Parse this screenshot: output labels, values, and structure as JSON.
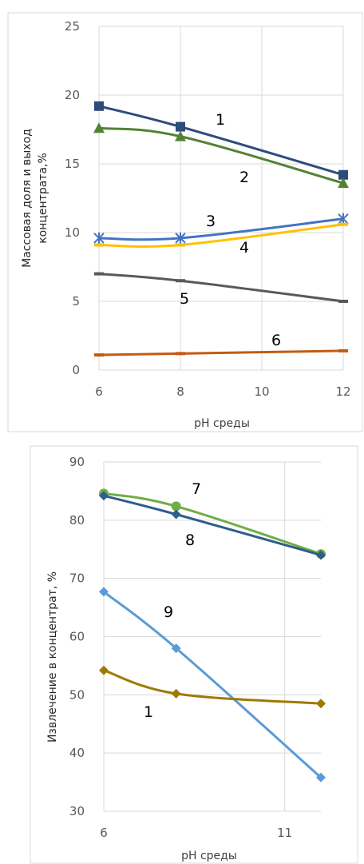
{
  "chart_data": [
    {
      "type": "line",
      "title": "",
      "xlabel": "pH среды",
      "ylabel_lines": [
        "Массовая доля  и выход",
        "концентрата,%"
      ],
      "x_ticks": [
        6,
        8,
        10,
        12
      ],
      "y_ticks": [
        0,
        5,
        10,
        15,
        20,
        25
      ],
      "xlim": [
        6,
        12
      ],
      "ylim": [
        0,
        25
      ],
      "grid": true,
      "legend": "none",
      "x": [
        6,
        8,
        12
      ],
      "series": [
        {
          "label": "1",
          "color": "#2f4b7c",
          "marker": "square",
          "values": [
            19.2,
            17.7,
            14.2
          ]
        },
        {
          "label": "2",
          "color": "#548235",
          "marker": "triangle",
          "values": [
            17.6,
            17.0,
            13.6
          ]
        },
        {
          "label": "3",
          "color": "#4472c4",
          "marker": "star",
          "values": [
            9.6,
            9.6,
            11.0
          ]
        },
        {
          "label": "4",
          "color": "#ffc000",
          "marker": "dash",
          "values": [
            9.1,
            9.1,
            10.6
          ]
        },
        {
          "label": "5",
          "color": "#595959",
          "marker": "dash",
          "values": [
            7.0,
            6.5,
            5.0
          ]
        },
        {
          "label": "6",
          "color": "#c55a11",
          "marker": "dash",
          "values": [
            1.1,
            1.2,
            1.4
          ]
        }
      ]
    },
    {
      "type": "line",
      "title": "",
      "xlabel": "pH среды",
      "ylabel": "Извлечение    в концентрат, %",
      "x_ticks": [
        6,
        11
      ],
      "y_ticks": [
        30,
        40,
        50,
        60,
        70,
        80,
        90
      ],
      "xlim": [
        6,
        12
      ],
      "ylim": [
        30,
        90
      ],
      "grid": true,
      "legend": "none",
      "x": [
        6,
        8,
        12
      ],
      "series": [
        {
          "label": "7",
          "color": "#70ad47",
          "marker": "circle",
          "values": [
            84.6,
            82.4,
            74.2
          ]
        },
        {
          "label": "8",
          "color": "#2f5d8c",
          "marker": "diamond",
          "values": [
            84.2,
            81.0,
            74.0
          ]
        },
        {
          "label": "9",
          "color": "#5b9bd5",
          "marker": "diamond",
          "values": [
            67.7,
            58.0,
            35.8
          ]
        },
        {
          "label": "1",
          "color": "#9e7a00",
          "marker": "diamond",
          "values": [
            54.2,
            50.2,
            48.5
          ]
        }
      ]
    }
  ]
}
